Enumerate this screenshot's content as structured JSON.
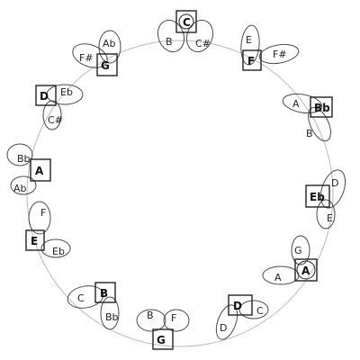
{
  "nodes": [
    {
      "id": "top",
      "main": "C",
      "left": "B",
      "right": "C#"
    },
    {
      "id": "upper-right",
      "main": "F",
      "top": "E",
      "right": "F#"
    },
    {
      "id": "right-top",
      "main": "Bb",
      "left": "A",
      "bottom": "B"
    },
    {
      "id": "right",
      "main": "Eb",
      "top": "D",
      "bottom": "E"
    },
    {
      "id": "lower-right",
      "main": "A",
      "top": "G",
      "left": "A"
    },
    {
      "id": "bottom-right",
      "main": "D",
      "left": "D",
      "right": "C"
    },
    {
      "id": "bottom",
      "main": "G",
      "left": "G",
      "top": "F",
      "extra": "B"
    },
    {
      "id": "lower-left",
      "main": "B",
      "left": "C",
      "bottom": "Bb"
    },
    {
      "id": "left-bottom",
      "main": "E",
      "top": "F",
      "right": "Eb"
    },
    {
      "id": "left",
      "main": "A",
      "top": "Bb",
      "bottom": "Ab"
    },
    {
      "id": "upper-left",
      "main": "D",
      "right": "Eb",
      "bottom": "C#"
    },
    {
      "id": "top-left",
      "main": "G",
      "left": "F#",
      "top": "Ab"
    }
  ]
}
